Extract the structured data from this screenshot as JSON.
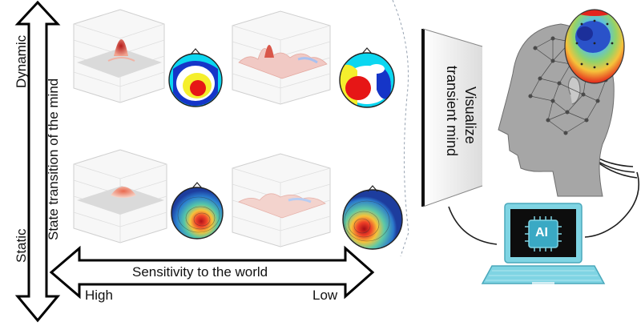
{
  "axes": {
    "vertical_top_label": "Dynamic",
    "vertical_bottom_label": "Static",
    "vertical_axis_title": "State transition of the mind",
    "horizontal_axis_title": "Sensitivity to the world",
    "horizontal_left_label": "High",
    "horizontal_right_label": "Low"
  },
  "funnel_label_line1": "Visualize",
  "funnel_label_line2": "transient mind",
  "laptop_chip_label": "AI",
  "colors": {
    "laptop_accent": "#7fd4e3",
    "head_gray": "#a6a6a6",
    "topo_red": "#e3241c",
    "topo_blue": "#1f4fbf",
    "topo_yellow": "#f4ea2a"
  },
  "panels": [
    {
      "name": "panel-dynamic-high",
      "surface": "single-peak",
      "topomap": "discrete-high"
    },
    {
      "name": "panel-dynamic-low",
      "surface": "noisy",
      "topomap": "discrete-low"
    },
    {
      "name": "panel-static-high",
      "surface": "smooth-dome",
      "topomap": "smooth-high"
    },
    {
      "name": "panel-static-low",
      "surface": "flat-noisy",
      "topomap": "smooth-low"
    }
  ]
}
